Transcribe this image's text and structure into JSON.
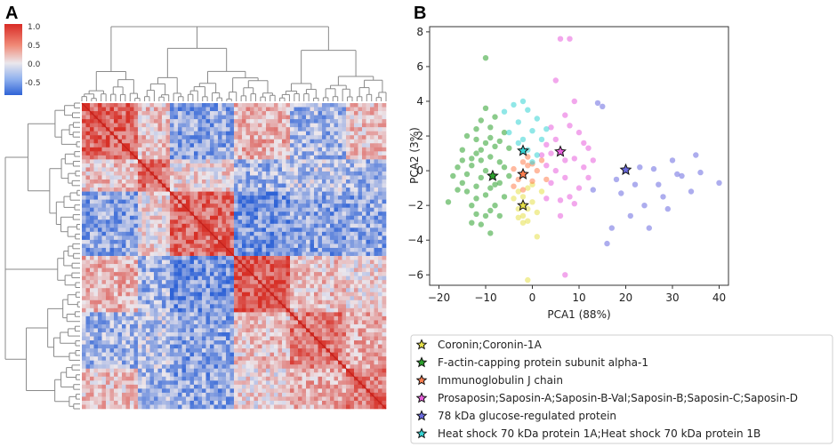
{
  "panels": {
    "a": "A",
    "b": "B"
  },
  "heatmap": {
    "colorbar_ticks": [
      "1.0",
      "0.5",
      "0.0",
      "-0.5"
    ],
    "colormap": {
      "high": "#d73027",
      "mid": "#e8e8ee",
      "low": "#3a6fd8"
    }
  },
  "chart_data": {
    "type": "scatter",
    "xlabel": "PCA1 (88%)",
    "ylabel": "PCA2 (3%)",
    "xlim": [
      -22,
      42
    ],
    "ylim": [
      -6.6,
      8.3
    ],
    "xticks": [
      -20,
      -10,
      0,
      10,
      20,
      30,
      40
    ],
    "yticks": [
      -6,
      -4,
      -2,
      0,
      2,
      4,
      6,
      8
    ],
    "series": [
      {
        "name": "Coronin;Coronin-1A",
        "color": "#e6e04a",
        "marker": [
          -2,
          -2.0
        ],
        "points": [
          [
            -2,
            -1.5
          ],
          [
            -1,
            -2.2
          ],
          [
            -3,
            -1.2
          ],
          [
            -2,
            -2.6
          ],
          [
            0,
            -1.8
          ],
          [
            -1,
            -1.0
          ],
          [
            -4,
            -1.6
          ],
          [
            1,
            -2.4
          ],
          [
            -2,
            -3.0
          ],
          [
            0,
            -0.8
          ],
          [
            -3,
            -2.2
          ],
          [
            2,
            -1.2
          ],
          [
            -1,
            -2.9
          ],
          [
            1,
            -3.8
          ],
          [
            -1,
            -6.3
          ],
          [
            -3,
            -2.7
          ]
        ]
      },
      {
        "name": "F-actin-capping protein subunit alpha-1",
        "color": "#2ca02c",
        "marker": [
          -8.5,
          -0.3
        ],
        "points": [
          [
            -10,
            6.5
          ],
          [
            -14,
            -0.2
          ],
          [
            -12,
            1.8
          ],
          [
            -18,
            -1.8
          ],
          [
            -15,
            1.2
          ],
          [
            -11,
            0.6
          ],
          [
            -9,
            -1.0
          ],
          [
            -13,
            -2.0
          ],
          [
            -8,
            1.4
          ],
          [
            -10,
            0.0
          ],
          [
            -12,
            -0.9
          ],
          [
            -7,
            0.5
          ],
          [
            -9,
            2.5
          ],
          [
            -11,
            2.9
          ],
          [
            -13,
            0.3
          ],
          [
            -16,
            0.2
          ],
          [
            -10,
            -2.6
          ],
          [
            -8,
            -2.0
          ],
          [
            -6,
            -1.5
          ],
          [
            -14,
            -1.2
          ],
          [
            -11,
            -3.1
          ],
          [
            -9,
            -3.6
          ],
          [
            -7,
            -2.6
          ],
          [
            -12,
            1.0
          ],
          [
            -15,
            -0.7
          ],
          [
            -10,
            1.6
          ],
          [
            -8,
            3.1
          ],
          [
            -6,
            2.2
          ],
          [
            -12,
            2.4
          ],
          [
            -5,
            1.3
          ],
          [
            -13,
            -3.0
          ],
          [
            -11,
            -0.4
          ],
          [
            -17,
            -0.3
          ],
          [
            -9,
            0.8
          ],
          [
            -7,
            -0.7
          ],
          [
            -14,
            2.0
          ],
          [
            -10,
            -1.4
          ],
          [
            -12,
            -1.6
          ],
          [
            -6,
            0.2
          ],
          [
            -8,
            -0.8
          ],
          [
            -16,
            -1.1
          ],
          [
            -11,
            1.2
          ],
          [
            -9,
            1.9
          ],
          [
            -13,
            0.7
          ],
          [
            -7,
            1.7
          ],
          [
            -10,
            3.6
          ],
          [
            -12,
            -2.5
          ],
          [
            -15,
            0.6
          ],
          [
            -5,
            -0.3
          ],
          [
            -9,
            -2.3
          ]
        ]
      },
      {
        "name": "Immunoglobulin J chain",
        "color": "#ff7f50",
        "marker": [
          -2,
          -0.2
        ],
        "points": [
          [
            -2,
            0.5
          ],
          [
            -4,
            0.1
          ],
          [
            0,
            -0.6
          ],
          [
            -3,
            -0.5
          ],
          [
            -1,
            0.8
          ],
          [
            1,
            0.0
          ],
          [
            -4,
            -0.9
          ],
          [
            2,
            0.6
          ],
          [
            -2,
            -1.1
          ],
          [
            0,
            0.4
          ],
          [
            3,
            -0.5
          ],
          [
            -1,
            0.3
          ]
        ]
      },
      {
        "name": "Prosaposin;Saposin-A;Saposin-B-Val;Saposin-B;Saposin-C;Saposin-D",
        "color": "#e85fdc",
        "marker": [
          6,
          1.1
        ],
        "points": [
          [
            6,
            7.6
          ],
          [
            8,
            7.6
          ],
          [
            5,
            5.2
          ],
          [
            9,
            4.0
          ],
          [
            7,
            3.2
          ],
          [
            10,
            2.2
          ],
          [
            4,
            2.5
          ],
          [
            3,
            1.5
          ],
          [
            9,
            0.7
          ],
          [
            11,
            0.2
          ],
          [
            5,
            0.0
          ],
          [
            7,
            -0.4
          ],
          [
            8,
            -1.5
          ],
          [
            12,
            -0.4
          ],
          [
            6,
            -1.7
          ],
          [
            4,
            -0.7
          ],
          [
            10,
            -1.0
          ],
          [
            3,
            0.3
          ],
          [
            2,
            0.9
          ],
          [
            11,
            1.6
          ],
          [
            8,
            2.6
          ],
          [
            6,
            -2.6
          ],
          [
            9,
            -1.9
          ],
          [
            5,
            1.8
          ],
          [
            7,
            0.6
          ],
          [
            13,
            0.6
          ],
          [
            3,
            -1.6
          ],
          [
            7,
            -6.0
          ],
          [
            12,
            1.3
          ],
          [
            4,
            1.0
          ]
        ]
      },
      {
        "name": "78 kDa glucose-regulated protein",
        "color": "#6a6ae0",
        "marker": [
          20,
          0.05
        ],
        "points": [
          [
            14,
            3.9
          ],
          [
            15,
            3.7
          ],
          [
            30,
            0.6
          ],
          [
            26,
            0.1
          ],
          [
            32,
            -0.3
          ],
          [
            28,
            -1.5
          ],
          [
            22,
            -0.8
          ],
          [
            19,
            -1.3
          ],
          [
            24,
            -2.0
          ],
          [
            36,
            -0.1
          ],
          [
            40,
            -0.7
          ],
          [
            34,
            -1.2
          ],
          [
            17,
            -3.3
          ],
          [
            21,
            -2.6
          ],
          [
            16,
            -4.2
          ],
          [
            25,
            -3.3
          ],
          [
            18,
            -0.5
          ],
          [
            23,
            0.2
          ],
          [
            29,
            -2.2
          ],
          [
            13,
            -1.1
          ],
          [
            27,
            -0.8
          ],
          [
            35,
            0.9
          ],
          [
            31,
            -0.2
          ]
        ]
      },
      {
        "name": "Heat shock 70 kDa protein 1A;Heat shock 70 kDa protein 1B",
        "color": "#35d4d4",
        "marker": [
          -2,
          1.15
        ],
        "points": [
          [
            -4,
            3.8
          ],
          [
            -1,
            3.5
          ],
          [
            1,
            3.0
          ],
          [
            -3,
            2.8
          ],
          [
            0,
            2.3
          ],
          [
            -2,
            1.8
          ],
          [
            2,
            1.8
          ],
          [
            -5,
            2.2
          ],
          [
            -1,
            1.2
          ],
          [
            1,
            0.9
          ],
          [
            -3,
            1.6
          ],
          [
            0,
            0.5
          ],
          [
            3,
            2.4
          ],
          [
            -6,
            3.4
          ],
          [
            -2,
            4.0
          ]
        ]
      }
    ]
  }
}
